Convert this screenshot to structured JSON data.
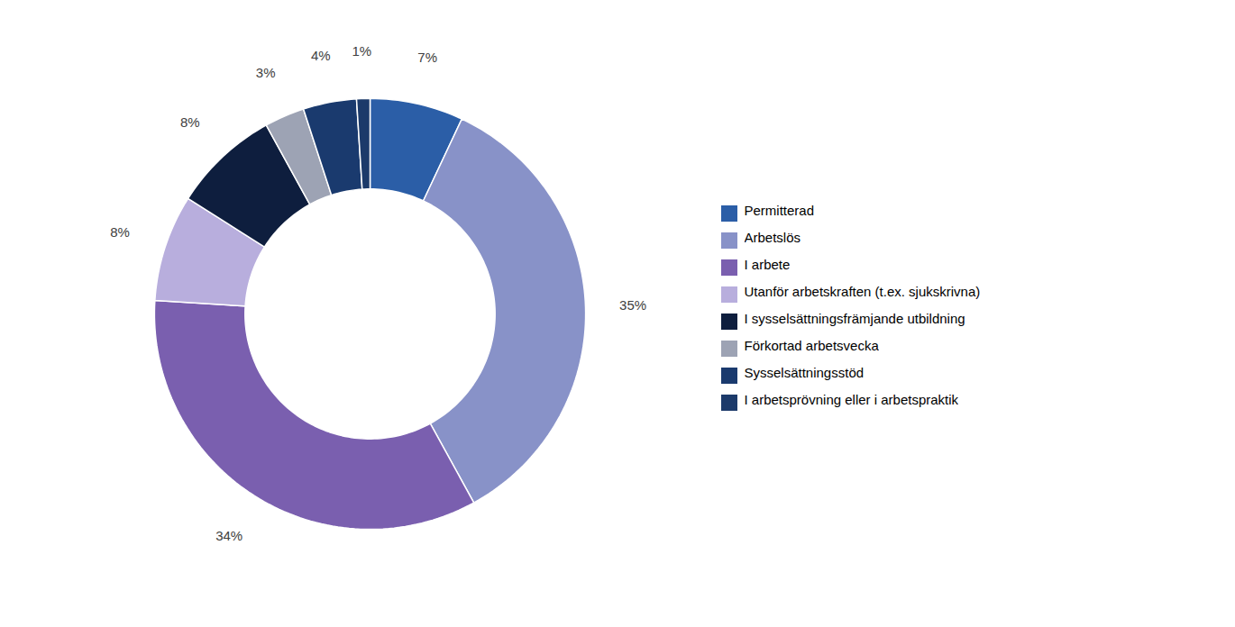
{
  "chart_data": {
    "type": "pie",
    "categories": [
      "Permitterad",
      "Arbetslös",
      "I arbete",
      "Utanför arbetskraften (t.ex. sjukskrivna)",
      "I sysselsättningsfrämjande utbildning",
      "Förkortad arbetsvecka",
      "Sysselsättningsstöd",
      "I arbetsprövning eller i arbetspraktik"
    ],
    "values": [
      7,
      35,
      34,
      8,
      8,
      3,
      4,
      1
    ],
    "value_labels": [
      "7%",
      "35%",
      "34%",
      "8%",
      "8%",
      "3%",
      "4%",
      "1%"
    ],
    "colors": [
      "#2B5EA7",
      "#8892C8",
      "#7A5FAF",
      "#B8AEDD",
      "#0E1E3E",
      "#9DA3B4",
      "#1A3A6E",
      "#1C3A6A"
    ],
    "data_labels": true,
    "legend": "right"
  }
}
